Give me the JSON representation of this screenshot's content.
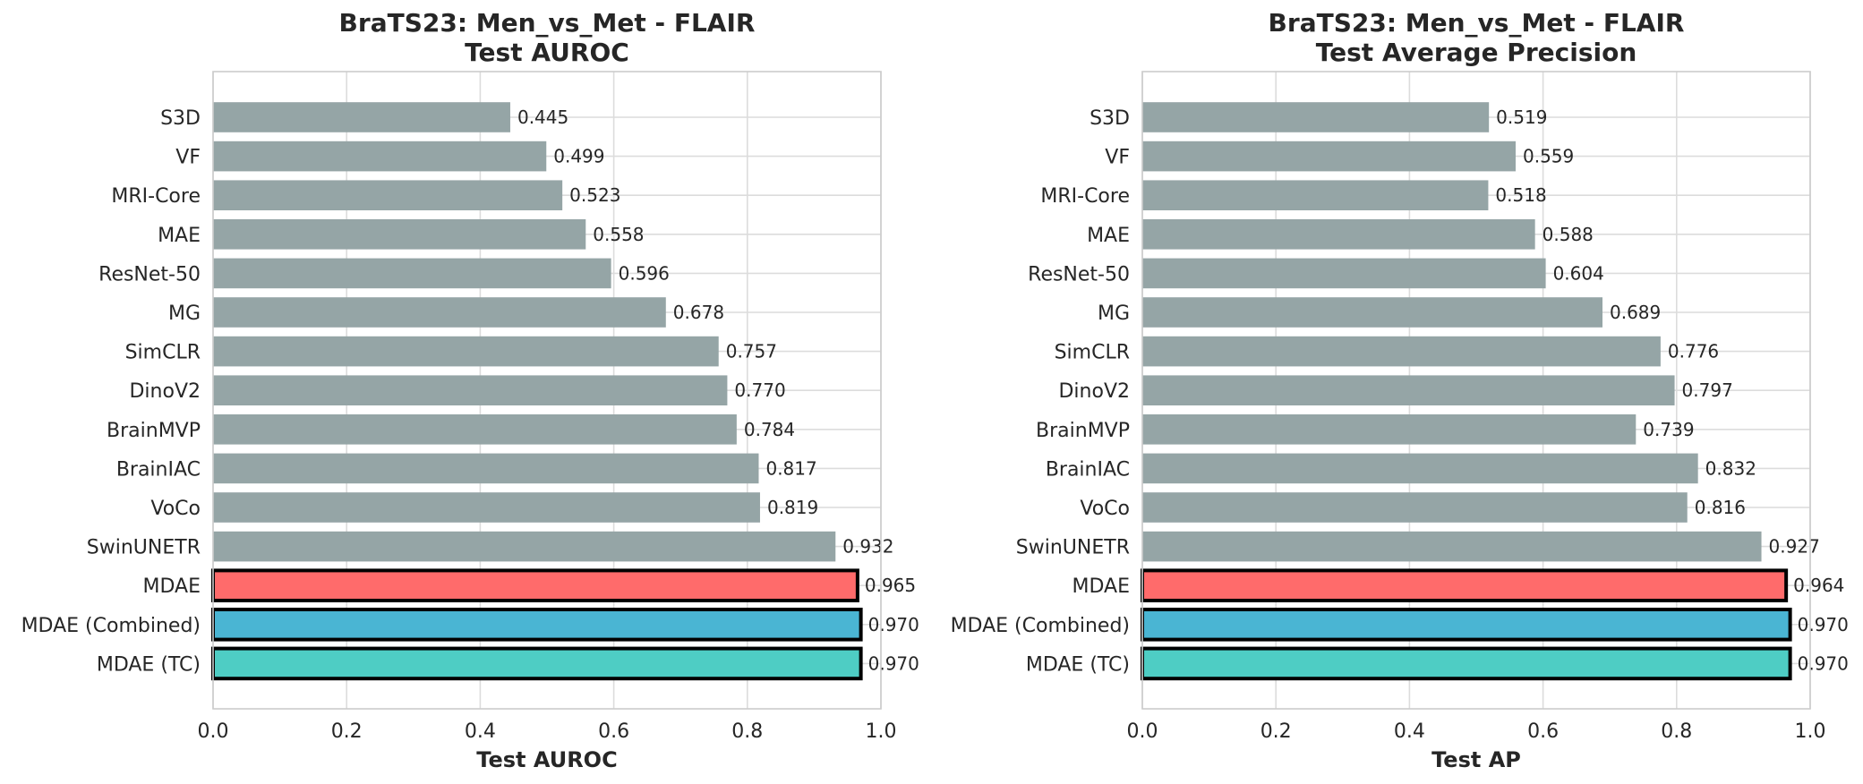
{
  "chart_data": [
    {
      "type": "bar",
      "orientation": "horizontal",
      "title": [
        "BraTS23: Men_vs_Met - FLAIR",
        "Test AUROC"
      ],
      "xlabel": "Test AUROC",
      "ylabel": "",
      "xlim": [
        0,
        1.0
      ],
      "xticks": [
        "0.0",
        "0.2",
        "0.4",
        "0.6",
        "0.8",
        "1.0"
      ],
      "grid": true,
      "categories": [
        "S3D",
        "VF",
        "MRI-Core",
        "MAE",
        "ResNet-50",
        "MG",
        "SimCLR",
        "DinoV2",
        "BrainMVP",
        "BrainIAC",
        "VoCo",
        "SwinUNETR",
        "MDAE",
        "MDAE (Combined)",
        "MDAE (TC)"
      ],
      "values": [
        0.445,
        0.499,
        0.523,
        0.558,
        0.596,
        0.678,
        0.757,
        0.77,
        0.784,
        0.817,
        0.819,
        0.932,
        0.965,
        0.97,
        0.97
      ],
      "labels": [
        "0.445",
        "0.499",
        "0.523",
        "0.558",
        "0.596",
        "0.678",
        "0.757",
        "0.770",
        "0.784",
        "0.817",
        "0.819",
        "0.932",
        "0.965",
        "0.970",
        "0.970"
      ],
      "colors": [
        "#95a5a6",
        "#95a5a6",
        "#95a5a6",
        "#95a5a6",
        "#95a5a6",
        "#95a5a6",
        "#95a5a6",
        "#95a5a6",
        "#95a5a6",
        "#95a5a6",
        "#95a5a6",
        "#95a5a6",
        "#ff6b6b",
        "#4ab5d3",
        "#4ecdc4"
      ],
      "highlighted": [
        false,
        false,
        false,
        false,
        false,
        false,
        false,
        false,
        false,
        false,
        false,
        false,
        true,
        true,
        true
      ]
    },
    {
      "type": "bar",
      "orientation": "horizontal",
      "title": [
        "BraTS23: Men_vs_Met - FLAIR",
        "Test Average Precision"
      ],
      "xlabel": "Test AP",
      "ylabel": "",
      "xlim": [
        0,
        1.0
      ],
      "xticks": [
        "0.0",
        "0.2",
        "0.4",
        "0.6",
        "0.8",
        "1.0"
      ],
      "grid": true,
      "categories": [
        "S3D",
        "VF",
        "MRI-Core",
        "MAE",
        "ResNet-50",
        "MG",
        "SimCLR",
        "DinoV2",
        "BrainMVP",
        "BrainIAC",
        "VoCo",
        "SwinUNETR",
        "MDAE",
        "MDAE (Combined)",
        "MDAE (TC)"
      ],
      "values": [
        0.519,
        0.559,
        0.518,
        0.588,
        0.604,
        0.689,
        0.776,
        0.797,
        0.739,
        0.832,
        0.816,
        0.927,
        0.964,
        0.97,
        0.97
      ],
      "labels": [
        "0.519",
        "0.559",
        "0.518",
        "0.588",
        "0.604",
        "0.689",
        "0.776",
        "0.797",
        "0.739",
        "0.832",
        "0.816",
        "0.927",
        "0.964",
        "0.970",
        "0.970"
      ],
      "colors": [
        "#95a5a6",
        "#95a5a6",
        "#95a5a6",
        "#95a5a6",
        "#95a5a6",
        "#95a5a6",
        "#95a5a6",
        "#95a5a6",
        "#95a5a6",
        "#95a5a6",
        "#95a5a6",
        "#95a5a6",
        "#ff6b6b",
        "#4ab5d3",
        "#4ecdc4"
      ],
      "highlighted": [
        false,
        false,
        false,
        false,
        false,
        false,
        false,
        false,
        false,
        false,
        false,
        false,
        true,
        true,
        true
      ]
    }
  ]
}
